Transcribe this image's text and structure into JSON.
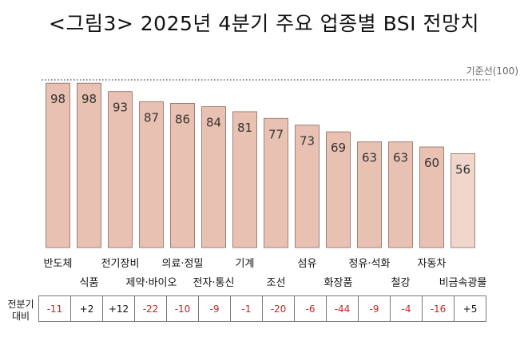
{
  "title": "<그림3> 2025년 4분기 주요 업종별 BSI 전망치",
  "reference_label": "기준선(100)",
  "comparison_label_line1": "전분기",
  "comparison_label_line2": "대비",
  "chart_data": {
    "type": "bar",
    "categories": [
      "반도체",
      "식품",
      "전기장비",
      "제약·바이오",
      "의료·정밀",
      "전자·통신",
      "기계",
      "조선",
      "섬유",
      "화장품",
      "정유·석화",
      "철강",
      "자동차",
      "비금속광물"
    ],
    "values": [
      98,
      98,
      93,
      87,
      86,
      84,
      81,
      77,
      73,
      69,
      63,
      63,
      60,
      56
    ],
    "change_vs_previous_quarter": [
      "-11",
      "+2",
      "+12",
      "-22",
      "-10",
      "-9",
      "-1",
      "-20",
      "-6",
      "-44",
      "-9",
      "-4",
      "-16",
      "+5"
    ],
    "reference_value": 100,
    "ylim": [
      0,
      100
    ],
    "title": "<그림3> 2025년 4분기 주요 업종별 BSI 전망치",
    "colors": {
      "bar": "#e8c1b2",
      "last_bar": "#f0d6cb",
      "negative_change": "#d22222",
      "positive_change": "#111111"
    }
  }
}
